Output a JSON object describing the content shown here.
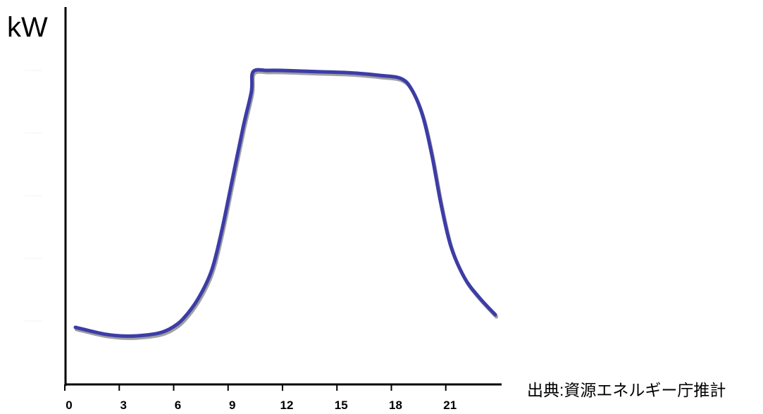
{
  "chart_data": {
    "type": "line",
    "title": "",
    "xlabel": "",
    "ylabel": "kW",
    "x_ticks": [
      0,
      3,
      6,
      9,
      12,
      15,
      18,
      21
    ],
    "xlim": [
      0,
      24
    ],
    "y_ticks": [
      1,
      2,
      3,
      4,
      5
    ],
    "y_tick_labels_shown": false,
    "ylim": [
      0,
      6
    ],
    "grid": false,
    "legend": "none",
    "series": [
      {
        "color": "#3c3ca8",
        "shadow_color": "#a0a0a0",
        "x": [
          0.35,
          2.0,
          3.2,
          4.35,
          5.1,
          5.7,
          6.3,
          7.1,
          7.85,
          8.4,
          9.0,
          9.6,
          10.05,
          10.15,
          10.95,
          11.7,
          13.65,
          15.6,
          17.15,
          18.3,
          18.9,
          19.5,
          20.0,
          20.5,
          21.05,
          21.8,
          22.6,
          23.5
        ],
        "y": [
          0.9,
          0.79,
          0.76,
          0.78,
          0.82,
          0.9,
          1.04,
          1.35,
          1.8,
          2.42,
          3.26,
          4.1,
          4.66,
          4.98,
          5.0,
          5.0,
          4.98,
          4.96,
          4.92,
          4.87,
          4.69,
          4.27,
          3.65,
          2.87,
          2.19,
          1.69,
          1.38,
          1.1
        ]
      }
    ]
  },
  "source_note": "出典:資源エネルギー庁推計"
}
